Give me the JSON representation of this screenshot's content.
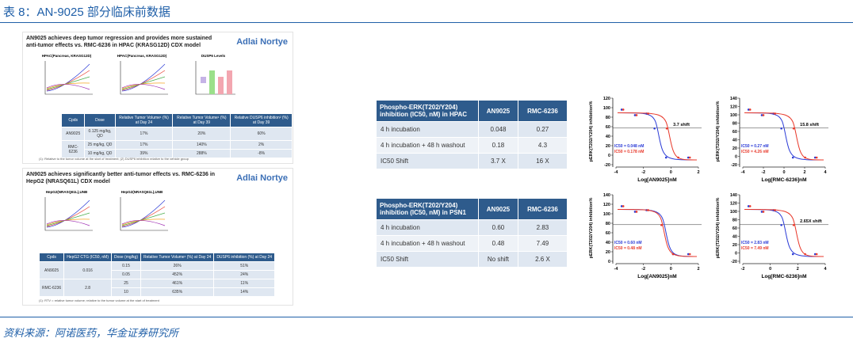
{
  "header": {
    "title": "表 8：AN-9025 部分临床前数据"
  },
  "panel_hpac": {
    "title": "AN9025 achieves deep tumor regression and provides more sustained anti-tumor effects vs. RMC-6236 in HPAC (KRASG12D) CDX model",
    "logo": "Adlai Nortye",
    "charts": [
      "HPAC(Pancreas, KRASG12D)",
      "HPAC(Pancreas, KRASG12D)",
      "DUSP6 Levels"
    ],
    "table": {
      "header": [
        "Cpds",
        "Dose",
        "Relative Tumor Volume¹ (%) at Day 24",
        "Relative Tumor Volume¹ (%) at Day 39",
        "Relative DUSP6 inhibition² (%) at Day 39"
      ],
      "groups": [
        {
          "cpd": "AN9025",
          "rows": [
            [
              "0.125 mg/kg, QD",
              "17%",
              "20%",
              "60%"
            ]
          ]
        },
        {
          "cpd": "RMC-6236",
          "rows": [
            [
              "25 mg/kg, QD",
              "17%",
              "140%",
              "2%"
            ],
            [
              "10 mg/kg, QD",
              "39%",
              "288%",
              "-8%"
            ]
          ]
        }
      ]
    },
    "note": "(1): Relative to the tumor volume at the start of treatment; (2) DUSP6 inhibition relative to the vehicle group"
  },
  "panel_hepg2": {
    "title": "AN9025 achieves significantly better anti-tumor effects vs. RMC-6236 in HepG2 (NRASQ61L) CDX model",
    "logo": "Adlai Nortye",
    "charts": [
      "HepG2(NRASQ61L),UNB",
      "HepG2(NRASQ61L),UNB"
    ],
    "table": {
      "header": [
        "Cpds",
        "HepG2 CTG (IC50, nM)",
        "Dose (mg/kg)",
        "Relative Tumor Volume¹ (%) at Day 24",
        "DUSP6 inhibition (%) at Day 24"
      ],
      "groups": [
        {
          "cpd": "AN9025",
          "ic50": "0.016",
          "rows": [
            [
              "0.15",
              "26%",
              "51%"
            ],
            [
              "0.05",
              "452%",
              "24%"
            ]
          ]
        },
        {
          "cpd": "RMC-6236",
          "ic50": "2.8",
          "rows": [
            [
              "25",
              "461%",
              "11%"
            ],
            [
              "10",
              "635%",
              "14%"
            ]
          ]
        }
      ]
    },
    "note": "(1): RTV = relative tumor volume; relative to the tumor volume at the start of treatment"
  },
  "ic50_tables": [
    {
      "header": [
        "Phospho-ERK(T202/Y204) inhibition (IC50, nM) in HPAC",
        "AN9025",
        "RMC-6236"
      ],
      "rows": [
        [
          "4 h incubation",
          "0.048",
          "0.27"
        ],
        [
          "4 h incubation + 48 h washout",
          "0.18",
          "4.3"
        ],
        [
          "IC50 Shift",
          "3.7 X",
          "16 X"
        ]
      ]
    },
    {
      "header": [
        "Phospho-ERK(T202/Y204) inhibition (IC50, nM) in PSN1",
        "AN9025",
        "RMC-6236"
      ],
      "rows": [
        [
          "4 h incubation",
          "0.60",
          "2.83"
        ],
        [
          "4 h incubation + 48 h washout",
          "0.48",
          "7.49"
        ],
        [
          "IC50 Shift",
          "No shift",
          "2.6 X"
        ]
      ]
    }
  ],
  "dose_response": [
    {
      "ylabel": "pERK(T202/Y204) inhibition%",
      "xlabel": "Log[AN9025]nM",
      "yticks": [
        -20,
        0,
        20,
        40,
        60,
        80,
        100,
        120
      ],
      "xticks": [
        -4,
        -2,
        0,
        2
      ],
      "legend": [
        {
          "label": "IC50 = 0.048 nM",
          "color": "#2b3bd6"
        },
        {
          "label": "IC50 = 0.178 nM",
          "color": "#e8392b"
        }
      ],
      "annotation": "3.7 shift"
    },
    {
      "ylabel": "pERK(T202/Y204) inhibition%",
      "xlabel": "Log[RMC-6236]nM",
      "yticks": [
        -20,
        0,
        20,
        40,
        60,
        80,
        100,
        120,
        140
      ],
      "xticks": [
        -4,
        -2,
        0,
        2,
        4
      ],
      "legend": [
        {
          "label": "IC50 = 0.27 nM",
          "color": "#2b3bd6"
        },
        {
          "label": "IC50 = 4.26 nM",
          "color": "#e8392b"
        }
      ],
      "annotation": "15.8 shift"
    },
    {
      "ylabel": "pERK(T202/Y204) inhibition%",
      "xlabel": "Log[AN9025]nM",
      "yticks": [
        0,
        20,
        40,
        60,
        80,
        100,
        120,
        140
      ],
      "xticks": [
        -4,
        -2,
        0,
        2
      ],
      "legend": [
        {
          "label": "IC50 = 0.60 nM",
          "color": "#2b3bd6"
        },
        {
          "label": "IC50 = 0.48 nM",
          "color": "#e8392b"
        }
      ]
    },
    {
      "ylabel": "pERK(T202/Y204) inhibition%",
      "xlabel": "Log[RMC-6236]nM",
      "yticks": [
        -20,
        0,
        20,
        40,
        60,
        80,
        100,
        120,
        140
      ],
      "xticks": [
        -2,
        0,
        2,
        4
      ],
      "legend": [
        {
          "label": "IC50 = 2.83 nM",
          "color": "#2b3bd6"
        },
        {
          "label": "IC50 = 7.49 nM",
          "color": "#e8392b"
        }
      ],
      "annotation": "2.65X shift"
    }
  ],
  "footer": {
    "source": "资料来源：阿诺医药，华金证券研究所"
  }
}
